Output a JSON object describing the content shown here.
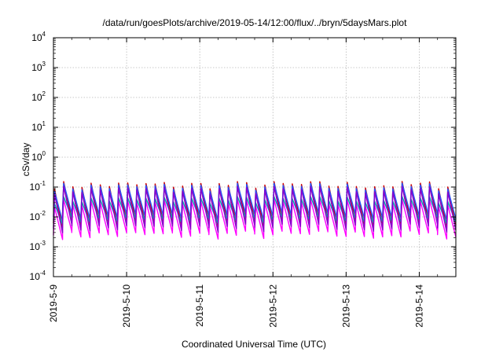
{
  "chart_data": {
    "type": "line",
    "title": "/data/run/goesPlots/archive/2019-05-14/12:00/flux/../bryn/5daysMars.plot",
    "xlabel": "Coordinated Universal Time (UTC)",
    "ylabel": "cSv/day",
    "yscale": "log",
    "ylim": [
      0.0001,
      10000
    ],
    "xlim": [
      "2019-05-09T00:00",
      "2019-05-14T12:00"
    ],
    "grid": true,
    "x_ticks": [
      "2019-5-9",
      "2019-5-10",
      "2019-5-11",
      "2019-5-12",
      "2019-5-13",
      "2019-5-14"
    ],
    "y_ticks": [
      {
        "base": "10",
        "exp": "-4",
        "value": 0.0001
      },
      {
        "base": "10",
        "exp": "-3",
        "value": 0.001
      },
      {
        "base": "10",
        "exp": "-2",
        "value": 0.01
      },
      {
        "base": "10",
        "exp": "-1",
        "value": 0.1
      },
      {
        "base": "10",
        "exp": "0",
        "value": 1
      },
      {
        "base": "10",
        "exp": "1",
        "value": 10
      },
      {
        "base": "10",
        "exp": "2",
        "value": 100
      },
      {
        "base": "10",
        "exp": "3",
        "value": 1000
      },
      {
        "base": "10",
        "exp": "4",
        "value": 10000
      }
    ],
    "cycle_hours": 3,
    "series": [
      {
        "color": "#cc0000",
        "peak": [
          0.06,
          0.16
        ],
        "trough": [
          0.003,
          0.009
        ]
      },
      {
        "color": "#2255ff",
        "peak": [
          0.05,
          0.14
        ],
        "trough": [
          0.005,
          0.014
        ]
      },
      {
        "color": "#ff00ff",
        "peak": [
          0.015,
          0.04
        ],
        "trough": [
          0.0012,
          0.0035
        ]
      },
      {
        "color": "#00aaaa",
        "peak": [
          0.02,
          0.05
        ],
        "trough": [
          0.004,
          0.01
        ]
      },
      {
        "color": "#8800cc",
        "peak": [
          0.04,
          0.11
        ],
        "trough": [
          0.002,
          0.006
        ]
      }
    ]
  }
}
